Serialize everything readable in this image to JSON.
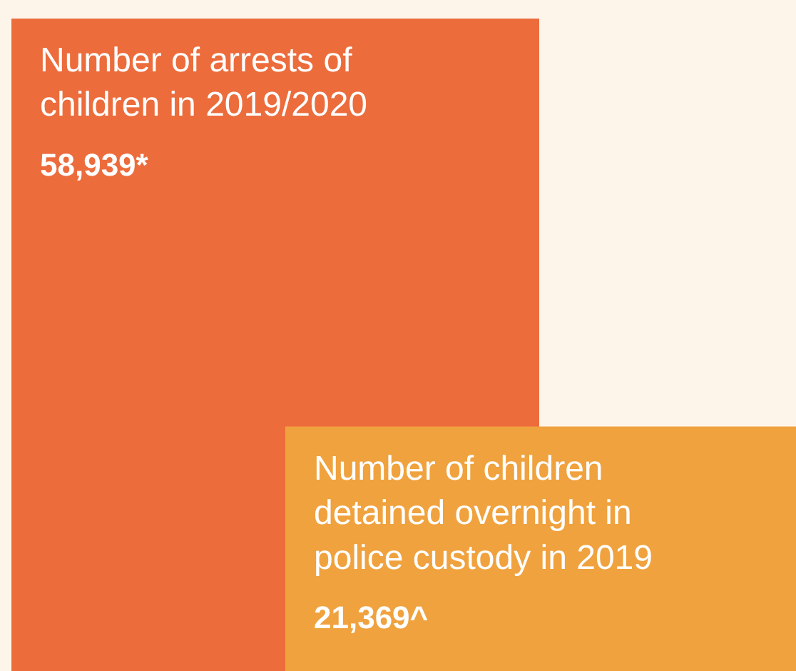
{
  "chart_data": {
    "type": "other",
    "categories": [
      "Number of arrests of children in 2019/2020",
      "Number of children detained overnight in police custody in 2019"
    ],
    "values": [
      58939,
      21369
    ],
    "value_labels": [
      "58,939*",
      "21,369^"
    ],
    "colors": [
      "#ec6c3c",
      "#f0a23e"
    ]
  }
}
